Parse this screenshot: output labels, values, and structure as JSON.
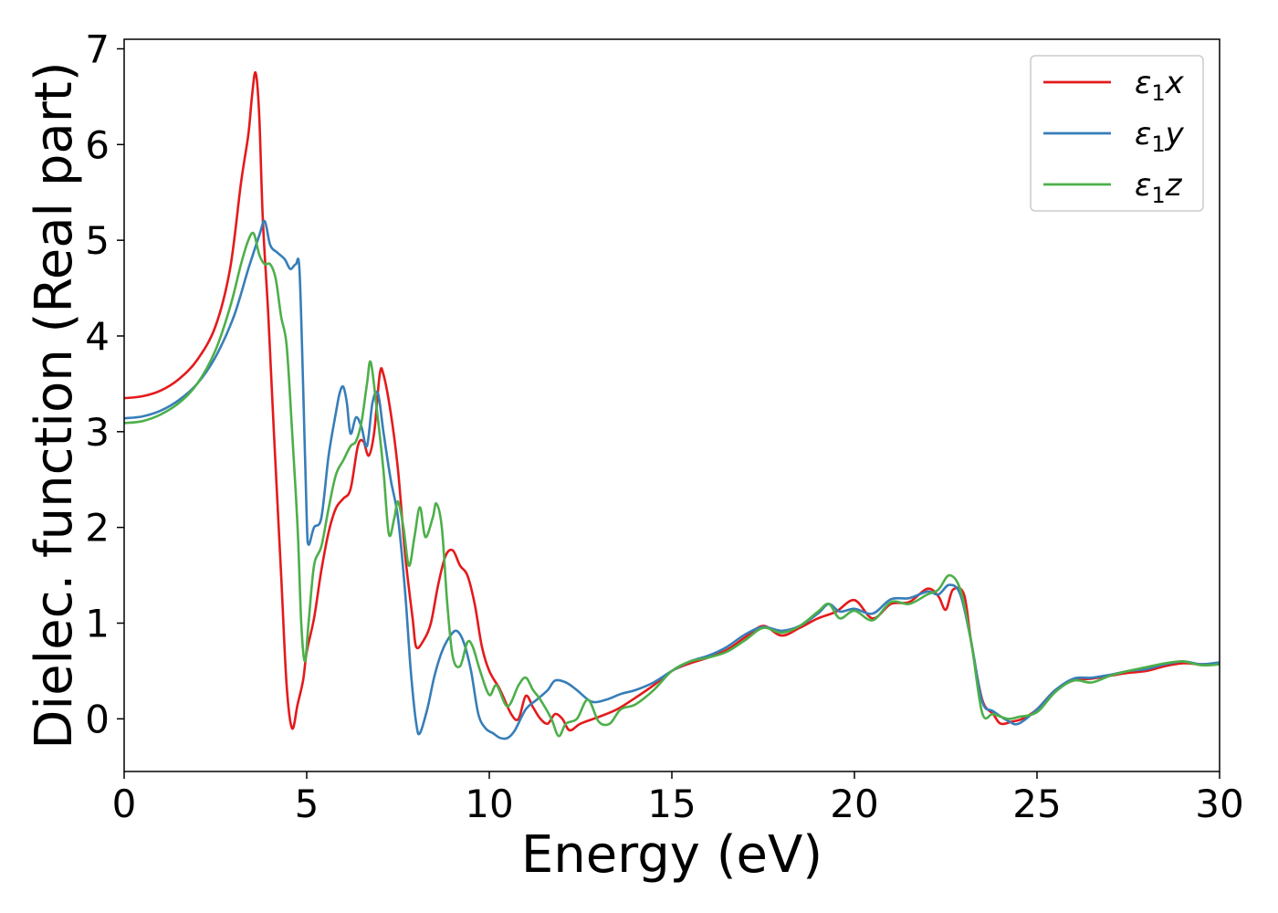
{
  "chart_data": {
    "type": "line",
    "xlabel": "Energy (eV)",
    "ylabel": "Dielec. function (Real part)",
    "xlim": [
      0,
      30
    ],
    "ylim": [
      -0.55,
      7.1
    ],
    "xticks": [
      0,
      5,
      10,
      15,
      20,
      25,
      30
    ],
    "yticks": [
      0,
      1,
      2,
      3,
      4,
      5,
      6,
      7
    ],
    "grid": false,
    "legend_position": "top-right",
    "series": [
      {
        "name": "ε₁x",
        "legend_base": "ε",
        "legend_sub": "1",
        "legend_suffix": "x",
        "color": "#e41a1c",
        "points": [
          [
            0,
            3.35
          ],
          [
            0.5,
            3.37
          ],
          [
            1,
            3.43
          ],
          [
            1.5,
            3.55
          ],
          [
            2,
            3.75
          ],
          [
            2.5,
            4.1
          ],
          [
            2.9,
            4.7
          ],
          [
            3.2,
            5.6
          ],
          [
            3.4,
            6.1
          ],
          [
            3.5,
            6.5
          ],
          [
            3.6,
            6.75
          ],
          [
            3.7,
            6.3
          ],
          [
            3.8,
            5.2
          ],
          [
            3.95,
            4.2
          ],
          [
            4.1,
            3.0
          ],
          [
            4.3,
            1.5
          ],
          [
            4.45,
            0.35
          ],
          [
            4.6,
            -0.1
          ],
          [
            4.75,
            0.15
          ],
          [
            4.9,
            0.4
          ],
          [
            5.0,
            0.7
          ],
          [
            5.2,
            1.05
          ],
          [
            5.4,
            1.55
          ],
          [
            5.6,
            1.95
          ],
          [
            5.8,
            2.2
          ],
          [
            6.0,
            2.3
          ],
          [
            6.2,
            2.4
          ],
          [
            6.4,
            2.85
          ],
          [
            6.55,
            2.9
          ],
          [
            6.7,
            2.75
          ],
          [
            6.85,
            3.0
          ],
          [
            7.0,
            3.6
          ],
          [
            7.1,
            3.6
          ],
          [
            7.3,
            3.2
          ],
          [
            7.5,
            2.6
          ],
          [
            7.7,
            1.7
          ],
          [
            7.9,
            1.05
          ],
          [
            8.0,
            0.75
          ],
          [
            8.2,
            0.82
          ],
          [
            8.4,
            1.0
          ],
          [
            8.6,
            1.4
          ],
          [
            8.8,
            1.7
          ],
          [
            9.0,
            1.76
          ],
          [
            9.2,
            1.6
          ],
          [
            9.4,
            1.5
          ],
          [
            9.6,
            1.2
          ],
          [
            9.8,
            0.75
          ],
          [
            10.0,
            0.5
          ],
          [
            10.3,
            0.3
          ],
          [
            10.6,
            0.05
          ],
          [
            10.8,
            0.0
          ],
          [
            11.0,
            0.24
          ],
          [
            11.2,
            0.12
          ],
          [
            11.4,
            0.0
          ],
          [
            11.6,
            -0.05
          ],
          [
            11.8,
            0.05
          ],
          [
            12.0,
            0.0
          ],
          [
            12.2,
            -0.12
          ],
          [
            12.5,
            -0.05
          ],
          [
            13.0,
            0.02
          ],
          [
            13.5,
            0.1
          ],
          [
            14.0,
            0.22
          ],
          [
            14.5,
            0.35
          ],
          [
            15.0,
            0.5
          ],
          [
            15.5,
            0.58
          ],
          [
            16.0,
            0.64
          ],
          [
            16.5,
            0.72
          ],
          [
            17.0,
            0.85
          ],
          [
            17.5,
            0.97
          ],
          [
            18.0,
            0.87
          ],
          [
            18.5,
            0.95
          ],
          [
            19.0,
            1.05
          ],
          [
            19.5,
            1.12
          ],
          [
            20.0,
            1.24
          ],
          [
            20.5,
            1.05
          ],
          [
            21.0,
            1.2
          ],
          [
            21.5,
            1.22
          ],
          [
            22.0,
            1.36
          ],
          [
            22.3,
            1.28
          ],
          [
            22.5,
            1.14
          ],
          [
            22.7,
            1.35
          ],
          [
            23.0,
            1.3
          ],
          [
            23.2,
            0.8
          ],
          [
            23.5,
            0.2
          ],
          [
            23.8,
            0.05
          ],
          [
            24.0,
            -0.05
          ],
          [
            24.3,
            -0.03
          ],
          [
            24.6,
            0.0
          ],
          [
            25.0,
            0.1
          ],
          [
            25.5,
            0.3
          ],
          [
            26.0,
            0.4
          ],
          [
            26.5,
            0.42
          ],
          [
            27.0,
            0.45
          ],
          [
            27.5,
            0.48
          ],
          [
            28.0,
            0.5
          ],
          [
            28.5,
            0.55
          ],
          [
            29.0,
            0.58
          ],
          [
            29.5,
            0.57
          ],
          [
            30.0,
            0.58
          ]
        ]
      },
      {
        "name": "ε₁y",
        "legend_base": "ε",
        "legend_sub": "1",
        "legend_suffix": "y",
        "color": "#377eb8",
        "points": [
          [
            0,
            3.14
          ],
          [
            0.5,
            3.16
          ],
          [
            1,
            3.22
          ],
          [
            1.5,
            3.33
          ],
          [
            2,
            3.5
          ],
          [
            2.5,
            3.78
          ],
          [
            3.0,
            4.2
          ],
          [
            3.4,
            4.7
          ],
          [
            3.7,
            5.05
          ],
          [
            3.85,
            5.2
          ],
          [
            4.0,
            4.95
          ],
          [
            4.2,
            4.87
          ],
          [
            4.4,
            4.8
          ],
          [
            4.55,
            4.7
          ],
          [
            4.7,
            4.75
          ],
          [
            4.8,
            4.7
          ],
          [
            4.9,
            3.5
          ],
          [
            5.0,
            2.1
          ],
          [
            5.05,
            1.82
          ],
          [
            5.2,
            2.0
          ],
          [
            5.4,
            2.1
          ],
          [
            5.6,
            2.75
          ],
          [
            5.8,
            3.2
          ],
          [
            5.9,
            3.4
          ],
          [
            6.0,
            3.47
          ],
          [
            6.1,
            3.3
          ],
          [
            6.2,
            2.98
          ],
          [
            6.35,
            3.15
          ],
          [
            6.5,
            3.05
          ],
          [
            6.65,
            2.85
          ],
          [
            6.8,
            3.3
          ],
          [
            6.95,
            3.4
          ],
          [
            7.1,
            3.0
          ],
          [
            7.3,
            2.5
          ],
          [
            7.5,
            2.1
          ],
          [
            7.7,
            1.3
          ],
          [
            7.85,
            0.5
          ],
          [
            8.0,
            -0.05
          ],
          [
            8.1,
            -0.15
          ],
          [
            8.3,
            0.1
          ],
          [
            8.5,
            0.45
          ],
          [
            8.7,
            0.7
          ],
          [
            8.9,
            0.85
          ],
          [
            9.1,
            0.92
          ],
          [
            9.3,
            0.8
          ],
          [
            9.5,
            0.5
          ],
          [
            9.7,
            0.05
          ],
          [
            9.9,
            -0.1
          ],
          [
            10.1,
            -0.15
          ],
          [
            10.3,
            -0.2
          ],
          [
            10.5,
            -0.2
          ],
          [
            10.7,
            -0.12
          ],
          [
            11.0,
            0.1
          ],
          [
            11.3,
            0.2
          ],
          [
            11.6,
            0.3
          ],
          [
            11.8,
            0.4
          ],
          [
            12.1,
            0.38
          ],
          [
            12.4,
            0.3
          ],
          [
            12.8,
            0.18
          ],
          [
            13.2,
            0.2
          ],
          [
            13.6,
            0.26
          ],
          [
            14.0,
            0.3
          ],
          [
            14.5,
            0.38
          ],
          [
            15.0,
            0.5
          ],
          [
            15.5,
            0.6
          ],
          [
            16.0,
            0.66
          ],
          [
            16.5,
            0.75
          ],
          [
            17.0,
            0.88
          ],
          [
            17.5,
            0.96
          ],
          [
            18.0,
            0.92
          ],
          [
            18.5,
            0.97
          ],
          [
            19.0,
            1.1
          ],
          [
            19.3,
            1.2
          ],
          [
            19.6,
            1.12
          ],
          [
            20.0,
            1.15
          ],
          [
            20.5,
            1.1
          ],
          [
            21.0,
            1.25
          ],
          [
            21.5,
            1.26
          ],
          [
            22.0,
            1.33
          ],
          [
            22.3,
            1.3
          ],
          [
            22.6,
            1.4
          ],
          [
            22.9,
            1.3
          ],
          [
            23.2,
            0.8
          ],
          [
            23.5,
            0.18
          ],
          [
            23.8,
            0.08
          ],
          [
            24.2,
            -0.02
          ],
          [
            24.5,
            -0.05
          ],
          [
            25.0,
            0.1
          ],
          [
            25.5,
            0.3
          ],
          [
            26.0,
            0.42
          ],
          [
            26.5,
            0.43
          ],
          [
            27.0,
            0.46
          ],
          [
            27.5,
            0.5
          ],
          [
            28.0,
            0.52
          ],
          [
            28.5,
            0.57
          ],
          [
            29.0,
            0.6
          ],
          [
            29.5,
            0.57
          ],
          [
            30.0,
            0.59
          ]
        ]
      },
      {
        "name": "ε₁z",
        "legend_base": "ε",
        "legend_sub": "1",
        "legend_suffix": "z",
        "color": "#4daf4a",
        "points": [
          [
            0,
            3.09
          ],
          [
            0.5,
            3.11
          ],
          [
            1,
            3.18
          ],
          [
            1.5,
            3.3
          ],
          [
            2,
            3.5
          ],
          [
            2.5,
            3.85
          ],
          [
            2.9,
            4.3
          ],
          [
            3.2,
            4.75
          ],
          [
            3.4,
            5.0
          ],
          [
            3.55,
            5.07
          ],
          [
            3.7,
            4.85
          ],
          [
            3.85,
            4.75
          ],
          [
            4.0,
            4.75
          ],
          [
            4.15,
            4.6
          ],
          [
            4.3,
            4.2
          ],
          [
            4.45,
            3.9
          ],
          [
            4.6,
            3.0
          ],
          [
            4.75,
            2.0
          ],
          [
            4.85,
            1.0
          ],
          [
            4.95,
            0.6
          ],
          [
            5.05,
            1.0
          ],
          [
            5.2,
            1.6
          ],
          [
            5.4,
            1.8
          ],
          [
            5.6,
            2.2
          ],
          [
            5.8,
            2.55
          ],
          [
            6.0,
            2.7
          ],
          [
            6.2,
            2.85
          ],
          [
            6.35,
            2.9
          ],
          [
            6.5,
            3.1
          ],
          [
            6.65,
            3.5
          ],
          [
            6.75,
            3.73
          ],
          [
            6.9,
            3.3
          ],
          [
            7.1,
            2.6
          ],
          [
            7.25,
            1.93
          ],
          [
            7.4,
            2.1
          ],
          [
            7.5,
            2.27
          ],
          [
            7.65,
            2.0
          ],
          [
            7.8,
            1.6
          ],
          [
            7.95,
            1.9
          ],
          [
            8.1,
            2.21
          ],
          [
            8.25,
            1.9
          ],
          [
            8.45,
            2.1
          ],
          [
            8.55,
            2.25
          ],
          [
            8.7,
            2.0
          ],
          [
            8.85,
            1.2
          ],
          [
            9.0,
            0.65
          ],
          [
            9.2,
            0.55
          ],
          [
            9.4,
            0.8
          ],
          [
            9.55,
            0.75
          ],
          [
            9.75,
            0.5
          ],
          [
            10.0,
            0.25
          ],
          [
            10.2,
            0.35
          ],
          [
            10.5,
            0.13
          ],
          [
            10.8,
            0.35
          ],
          [
            11.0,
            0.43
          ],
          [
            11.2,
            0.3
          ],
          [
            11.4,
            0.2
          ],
          [
            11.7,
            0.0
          ],
          [
            11.9,
            -0.18
          ],
          [
            12.1,
            -0.05
          ],
          [
            12.4,
            0.0
          ],
          [
            12.7,
            0.2
          ],
          [
            13.0,
            -0.03
          ],
          [
            13.3,
            -0.05
          ],
          [
            13.6,
            0.1
          ],
          [
            14.0,
            0.15
          ],
          [
            14.5,
            0.3
          ],
          [
            15.0,
            0.5
          ],
          [
            15.5,
            0.6
          ],
          [
            16.0,
            0.64
          ],
          [
            16.5,
            0.7
          ],
          [
            17.0,
            0.82
          ],
          [
            17.5,
            0.95
          ],
          [
            18.0,
            0.9
          ],
          [
            18.5,
            0.97
          ],
          [
            19.0,
            1.12
          ],
          [
            19.3,
            1.2
          ],
          [
            19.6,
            1.05
          ],
          [
            20.0,
            1.13
          ],
          [
            20.5,
            1.03
          ],
          [
            21.0,
            1.22
          ],
          [
            21.5,
            1.2
          ],
          [
            22.0,
            1.3
          ],
          [
            22.3,
            1.35
          ],
          [
            22.6,
            1.5
          ],
          [
            22.9,
            1.35
          ],
          [
            23.2,
            0.8
          ],
          [
            23.5,
            0.06
          ],
          [
            23.8,
            0.05
          ],
          [
            24.2,
            0.0
          ],
          [
            24.5,
            0.02
          ],
          [
            25.0,
            0.07
          ],
          [
            25.5,
            0.28
          ],
          [
            26.0,
            0.4
          ],
          [
            26.5,
            0.38
          ],
          [
            27.0,
            0.45
          ],
          [
            27.5,
            0.5
          ],
          [
            28.0,
            0.54
          ],
          [
            28.5,
            0.58
          ],
          [
            29.0,
            0.6
          ],
          [
            29.5,
            0.56
          ],
          [
            30.0,
            0.57
          ]
        ]
      }
    ]
  }
}
